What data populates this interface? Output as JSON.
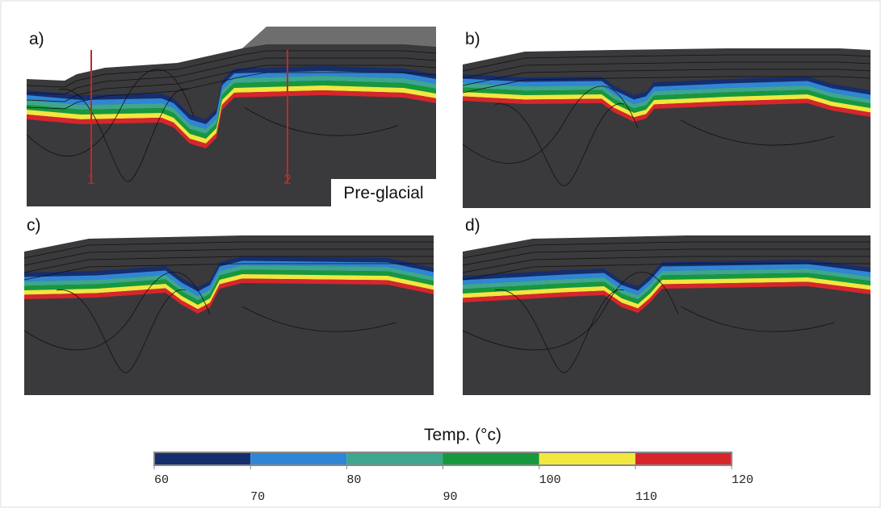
{
  "panels": [
    {
      "label": "a)",
      "annotation": "Pre-glacial",
      "wells": [
        "1",
        "2"
      ]
    },
    {
      "label": "b)"
    },
    {
      "label": "c)"
    },
    {
      "label": "d)"
    }
  ],
  "colorbar": {
    "title": "Temp. (°c)",
    "ticks": [
      60,
      70,
      80,
      90,
      100,
      110,
      120
    ],
    "colors": [
      "#162d6e",
      "#2f86d6",
      "#3ea68c",
      "#16983c",
      "#f2e640",
      "#d6262c"
    ]
  }
}
